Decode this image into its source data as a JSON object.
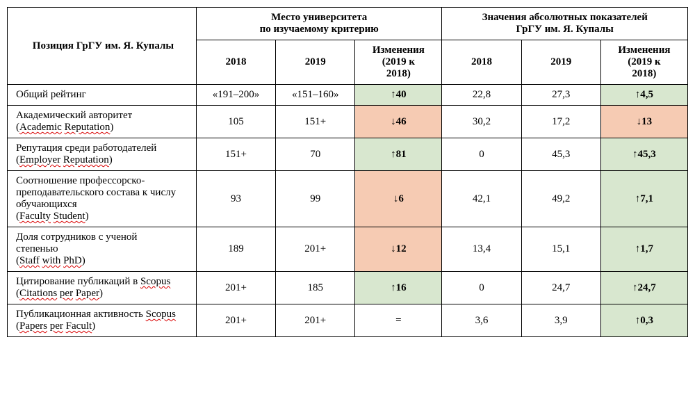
{
  "header": {
    "rowLabel": "Позиция ГрГУ им. Я. Купалы",
    "groupA_line1": "Место университета",
    "groupA_line2": "по изучаемому критерию",
    "groupB_line1": "Значения абсолютных показателей",
    "groupB_line2": "ГрГУ им. Я. Купалы",
    "y2018": "2018",
    "y2019": "2019",
    "change_line1": "Изменения",
    "change_line2": "(2019 к",
    "change_line3": "2018)"
  },
  "rows": [
    {
      "label_ru": "Общий рейтинг",
      "label_en": "",
      "rank2018": "«191–200»",
      "rank2019": "«151–160»",
      "rankChange": "↑40",
      "rankDir": "up",
      "val2018": "22,8",
      "val2019": "27,3",
      "valChange": "↑4,5",
      "valDir": "up"
    },
    {
      "label_ru": "Академический авторитет",
      "label_en_parts": [
        "Academic",
        " ",
        "Reputation"
      ],
      "rank2018": "105",
      "rank2019": "151+",
      "rankChange": "↓46",
      "rankDir": "down",
      "val2018": "30,2",
      "val2019": "17,2",
      "valChange": "↓13",
      "valDir": "down"
    },
    {
      "label_ru": "Репутация среди работодателей",
      "label_en_parts": [
        "Employer",
        " ",
        "Reputation"
      ],
      "rank2018": "151+",
      "rank2019": "70",
      "rankChange": "↑81",
      "rankDir": "up",
      "val2018": "0",
      "val2019": "45,3",
      "valChange": "↑45,3",
      "valDir": "up"
    },
    {
      "label_ru_lines": [
        "Соотношение профессорско-",
        "преподавательского состава к числу",
        "обучающихся"
      ],
      "label_en_parts": [
        "Faculty",
        " ",
        "Student"
      ],
      "rank2018": "93",
      "rank2019": "99",
      "rankChange": "↓6",
      "rankDir": "down",
      "val2018": "42,1",
      "val2019": "49,2",
      "valChange": "↑7,1",
      "valDir": "up"
    },
    {
      "label_ru_lines": [
        "Доля сотрудников с ученой",
        "степенью"
      ],
      "label_en_parts": [
        "Staff",
        " ",
        "with",
        " ",
        "PhD"
      ],
      "rank2018": "189",
      "rank2019": "201+",
      "rankChange": "↓12",
      "rankDir": "down",
      "val2018": "13,4",
      "val2019": "15,1",
      "valChange": "↑1,7",
      "valDir": "up"
    },
    {
      "label_ru_prefix": "Цитирование публикаций в ",
      "label_ru_spell": "Scopus",
      "label_en_parts": [
        "Citations",
        " ",
        "per",
        " ",
        "Paper"
      ],
      "rank2018": "201+",
      "rank2019": "185",
      "rankChange": "↑16",
      "rankDir": "up",
      "val2018": "0",
      "val2019": "24,7",
      "valChange": "↑24,7",
      "valDir": "up"
    },
    {
      "label_ru_prefix": "Публикационная активность ",
      "label_ru_spell": "Scopus",
      "label_en_parts": [
        "Papers",
        " ",
        "per",
        " ",
        "Facult"
      ],
      "rank2018": "201+",
      "rank2019": "201+",
      "rankChange": "=",
      "rankDir": "none",
      "val2018": "3,6",
      "val2019": "3,9",
      "valChange": "↑0,3",
      "valDir": "up"
    }
  ],
  "colors": {
    "up": "#d8e7cf",
    "down": "#f6cbb3",
    "border": "#000000",
    "text": "#000000",
    "spellWave": "#d90000",
    "background": "#ffffff"
  },
  "typography": {
    "fontFamily": "Times New Roman",
    "baseFontSizePt": 11
  },
  "structure": {
    "type": "table",
    "columns": 7,
    "columnWidthsPx": [
      250,
      105,
      105,
      115,
      105,
      105,
      115
    ]
  }
}
